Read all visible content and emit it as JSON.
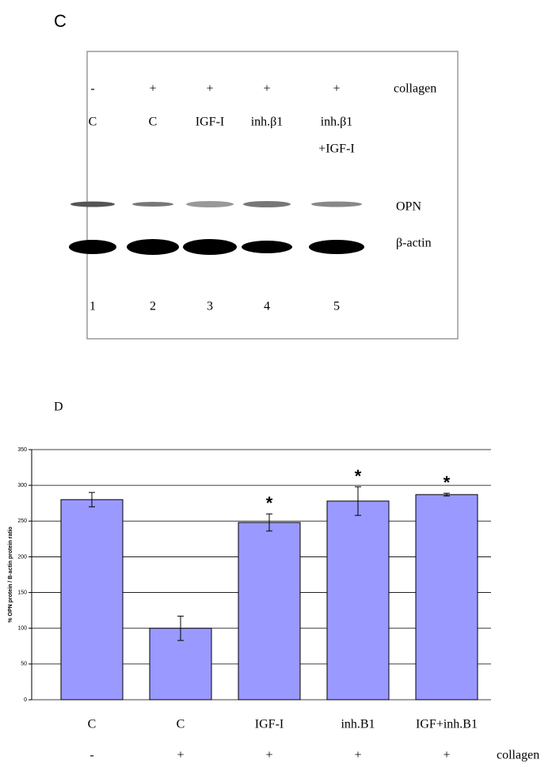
{
  "panel_c": {
    "label": "C",
    "collagen_signs": [
      "-",
      "+",
      "+",
      "+",
      "+"
    ],
    "collagen_label": "collagen",
    "treatments": [
      [
        "C"
      ],
      [
        "C"
      ],
      [
        "IGF-I"
      ],
      [
        "inh.β1"
      ],
      [
        "inh.β1",
        "+IGF-I"
      ]
    ],
    "bands": [
      "OPN",
      "β-actin"
    ],
    "lanes": [
      "1",
      "2",
      "3",
      "4",
      "5"
    ]
  },
  "panel_d": {
    "label": "D"
  },
  "chart_data": {
    "type": "bar",
    "y_label": "% OPN protein / B-actin protein ratio",
    "categories": [
      "C",
      "C",
      "IGF-I",
      "inh.B1",
      "IGF+inh.B1"
    ],
    "values": [
      280,
      100,
      248,
      278,
      287
    ],
    "errors": [
      10,
      17,
      12,
      20,
      2
    ],
    "significance": [
      null,
      null,
      "*",
      "*",
      "*"
    ],
    "conditions": {
      "name": "collagen",
      "values": [
        "-",
        "+",
        "+",
        "+",
        "+"
      ]
    },
    "color": "#9999ff",
    "ylim": [
      0,
      350
    ],
    "yticks": [
      0,
      50,
      100,
      150,
      200,
      250,
      300,
      350
    ],
    "grid": true
  }
}
